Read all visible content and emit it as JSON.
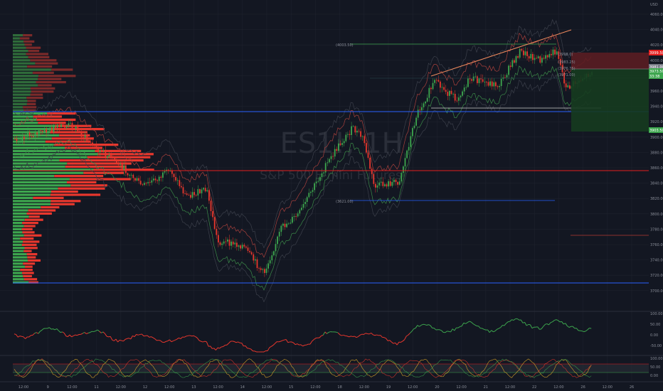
{
  "chart": {
    "symbol": "ES1!, 1H",
    "subtitle": "S&P 500 E-mini Futures",
    "currency": "USD",
    "colors": {
      "background": "#131722",
      "up": "#3da64e",
      "down": "#e8372d",
      "grid": "#1e222d",
      "blue_line": "#2962ff",
      "red_line": "#e51f1f",
      "trend": "#f08a5d",
      "band": "#3b3f4a"
    }
  },
  "price_axis": {
    "labels": [
      "4060.00",
      "4040.00",
      "4020.00",
      "4000.00",
      "3980.00",
      "3960.00",
      "3940.00",
      "3920.00",
      "3900.00",
      "3880.00",
      "3860.00",
      "3840.00",
      "3820.00",
      "3800.00",
      "3780.00",
      "3760.00",
      "3740.00",
      "3720.00",
      "3700.00"
    ],
    "tags": [
      {
        "text": "3999.50",
        "color": "#e51f1f"
      },
      {
        "text": "3981.00",
        "color": "#787b86"
      },
      {
        "text": "3973.50",
        "color": "#3da64e"
      },
      {
        "text": "33:38",
        "color": "#3da64e"
      },
      {
        "text": "3903.50",
        "color": "#3da64e"
      }
    ]
  },
  "annotations": {
    "level_top": "(4003.50)",
    "level_low": "(3621.00)",
    "fib_labels": [
      "(3998.0)",
      "(3983.25)",
      "(3976.75)",
      "(3971.00)"
    ]
  },
  "osc1_axis": [
    "100.00",
    "50.00",
    "0.00",
    "-50.00"
  ],
  "osc2_axis": [
    "100.00",
    "50.00",
    "0.00"
  ],
  "time_axis": [
    "12:00",
    "9",
    "12:00",
    "11",
    "12:00",
    "12",
    "12:00",
    "13",
    "12:00",
    "14",
    "12:00",
    "15",
    "12:00",
    "18",
    "12:00",
    "19",
    "12:00",
    "20",
    "12:00",
    "21",
    "12:00",
    "22",
    "12:00",
    "26",
    "12:00",
    "26"
  ]
}
